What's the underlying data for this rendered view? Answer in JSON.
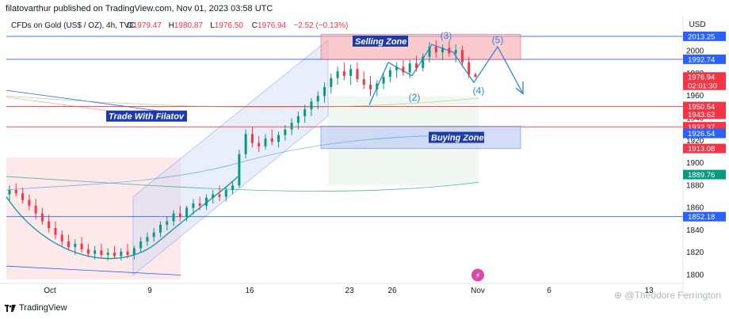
{
  "header": {
    "publisher": "filatovarthur published on TradingView.com, Nov 01, 2023 03:58 UTC"
  },
  "currency": "USD",
  "chart_data": {
    "type": "candlestick",
    "title": "CFDs on Gold (US$ / OZ), 4h, TVC",
    "ohlc": [
      {
        "label": "O",
        "value": "1979.47"
      },
      {
        "label": "H",
        "value": "1980.87"
      },
      {
        "label": "L",
        "value": "1976.50"
      },
      {
        "label": "C",
        "value": "1976.94"
      },
      {
        "label": "",
        "value": "−2.52 (−0.13%)"
      }
    ],
    "x_tick_labels": [
      {
        "label": "Oct",
        "x": "2023-10-02"
      },
      {
        "label": "9",
        "x": "2023-10-09"
      },
      {
        "label": "16",
        "x": "2023-10-16"
      },
      {
        "label": "23",
        "x": "2023-10-23"
      },
      {
        "label": "26",
        "x": "2023-10-26"
      },
      {
        "label": "Nov",
        "x": "2023-11-01"
      },
      {
        "label": "6",
        "x": "2023-11-06"
      },
      {
        "label": "13",
        "x": "2023-11-13"
      }
    ],
    "y_ticks": [
      1800,
      1820,
      1840,
      1860,
      1880,
      1900,
      1920,
      1940,
      1960,
      1980,
      2000
    ],
    "ylim": [
      1794,
      2016
    ],
    "price_labels": [
      {
        "value": "2013.25",
        "price": 2013.25,
        "bg": "#2962ff"
      },
      {
        "value": "1992.74",
        "price": 1992.74,
        "bg": "#2962ff"
      },
      {
        "value": "1976.94",
        "price": 1976.94,
        "bg": "#f23645"
      },
      {
        "value": "02:01:30",
        "price": 1969.5,
        "bg": "#f23645"
      },
      {
        "value": "1950.54",
        "price": 1950.54,
        "bg": "#f23645"
      },
      {
        "value": "1943.62",
        "price": 1943.62,
        "bg": "#f23645"
      },
      {
        "value": "1932.44",
        "price": 1932.44,
        "bg": "#f23645"
      },
      {
        "value": "1932.37",
        "price": 1932.37,
        "bg": "#f23645"
      },
      {
        "value": "1926.54",
        "price": 1926.54,
        "bg": "#2962ff"
      },
      {
        "value": "1913.08",
        "price": 1913.08,
        "bg": "#f23645"
      },
      {
        "value": "1889.76",
        "price": 1889.76,
        "bg": "#089981"
      },
      {
        "value": "1852.18",
        "price": 1852.18,
        "bg": "#2962ff"
      }
    ],
    "horizontal_levels": [
      {
        "price": 2013.25,
        "color": "#2962ff"
      },
      {
        "price": 1992.74,
        "color": "#2962ff"
      },
      {
        "price": 1950.54,
        "color": "#f23645"
      },
      {
        "price": 1932.44,
        "color": "#f23645"
      },
      {
        "price": 1852.18,
        "color": "#2962ff"
      }
    ],
    "zones": [
      {
        "label": "Selling Zone",
        "top": 2015,
        "bottom": 1992.5,
        "x0": "2023-10-21",
        "x1": "2023-11-04"
      },
      {
        "label": "Buying Zone",
        "top": 1933,
        "bottom": 1913,
        "x0": "2023-10-21",
        "x1": "2023-11-04"
      }
    ],
    "annotation": "Trade With Filatov",
    "wave_labels": [
      "(2)",
      "(3)",
      "(4)",
      "(5)"
    ],
    "candles": [
      [
        1872,
        1880,
        1866,
        1876
      ],
      [
        1876,
        1882,
        1870,
        1873
      ],
      [
        1873,
        1878,
        1864,
        1867
      ],
      [
        1867,
        1872,
        1858,
        1862
      ],
      [
        1862,
        1868,
        1850,
        1855
      ],
      [
        1855,
        1860,
        1845,
        1848
      ],
      [
        1848,
        1854,
        1838,
        1842
      ],
      [
        1842,
        1848,
        1832,
        1836
      ],
      [
        1836,
        1840,
        1826,
        1830
      ],
      [
        1830,
        1836,
        1822,
        1825
      ],
      [
        1825,
        1832,
        1818,
        1828
      ],
      [
        1828,
        1834,
        1820,
        1823
      ],
      [
        1823,
        1828,
        1816,
        1819
      ],
      [
        1819,
        1826,
        1814,
        1822
      ],
      [
        1822,
        1828,
        1816,
        1818
      ],
      [
        1818,
        1824,
        1813,
        1820
      ],
      [
        1820,
        1826,
        1815,
        1817
      ],
      [
        1817,
        1824,
        1813,
        1821
      ],
      [
        1821,
        1828,
        1815,
        1818
      ],
      [
        1818,
        1826,
        1814,
        1824
      ],
      [
        1824,
        1834,
        1820,
        1830
      ],
      [
        1830,
        1838,
        1826,
        1834
      ],
      [
        1834,
        1842,
        1830,
        1838
      ],
      [
        1838,
        1848,
        1834,
        1845
      ],
      [
        1845,
        1852,
        1840,
        1848
      ],
      [
        1848,
        1858,
        1844,
        1855
      ],
      [
        1855,
        1862,
        1848,
        1852
      ],
      [
        1852,
        1862,
        1848,
        1860
      ],
      [
        1860,
        1868,
        1854,
        1864
      ],
      [
        1864,
        1870,
        1858,
        1862
      ],
      [
        1862,
        1872,
        1858,
        1869
      ],
      [
        1869,
        1876,
        1864,
        1872
      ],
      [
        1872,
        1880,
        1866,
        1870
      ],
      [
        1870,
        1878,
        1866,
        1876
      ],
      [
        1876,
        1884,
        1872,
        1880
      ],
      [
        1880,
        1912,
        1878,
        1908
      ],
      [
        1908,
        1930,
        1904,
        1926
      ],
      [
        1926,
        1932,
        1914,
        1918
      ],
      [
        1918,
        1924,
        1910,
        1915
      ],
      [
        1915,
        1926,
        1912,
        1922
      ],
      [
        1922,
        1930,
        1916,
        1919
      ],
      [
        1919,
        1928,
        1914,
        1925
      ],
      [
        1925,
        1934,
        1920,
        1930
      ],
      [
        1930,
        1940,
        1925,
        1936
      ],
      [
        1936,
        1946,
        1930,
        1942
      ],
      [
        1942,
        1952,
        1936,
        1948
      ],
      [
        1948,
        1958,
        1942,
        1955
      ],
      [
        1955,
        1964,
        1948,
        1960
      ],
      [
        1960,
        1972,
        1954,
        1968
      ],
      [
        1968,
        1980,
        1962,
        1976
      ],
      [
        1976,
        1986,
        1970,
        1982
      ],
      [
        1982,
        1990,
        1974,
        1978
      ],
      [
        1978,
        1988,
        1970,
        1984
      ],
      [
        1984,
        1990,
        1972,
        1975
      ],
      [
        1975,
        1982,
        1966,
        1970
      ],
      [
        1970,
        1978,
        1960,
        1966
      ],
      [
        1966,
        1974,
        1960,
        1971
      ],
      [
        1971,
        1980,
        1966,
        1977
      ],
      [
        1977,
        1986,
        1972,
        1983
      ],
      [
        1983,
        1990,
        1976,
        1986
      ],
      [
        1986,
        1992,
        1978,
        1981
      ],
      [
        1981,
        1992,
        1976,
        1989
      ],
      [
        1989,
        1996,
        1982,
        1985
      ],
      [
        1985,
        1998,
        1982,
        1995
      ],
      [
        1995,
        2008,
        1990,
        2004
      ],
      [
        2004,
        2010,
        1994,
        1999
      ],
      [
        1999,
        2006,
        1992,
        2003
      ],
      [
        2003,
        2009,
        1995,
        1998
      ],
      [
        1998,
        2006,
        1990,
        2001
      ],
      [
        2001,
        2005,
        1986,
        1990
      ],
      [
        1990,
        1995,
        1976,
        1979
      ],
      [
        1979.47,
        1980.87,
        1976.5,
        1976.94
      ]
    ]
  }
}
